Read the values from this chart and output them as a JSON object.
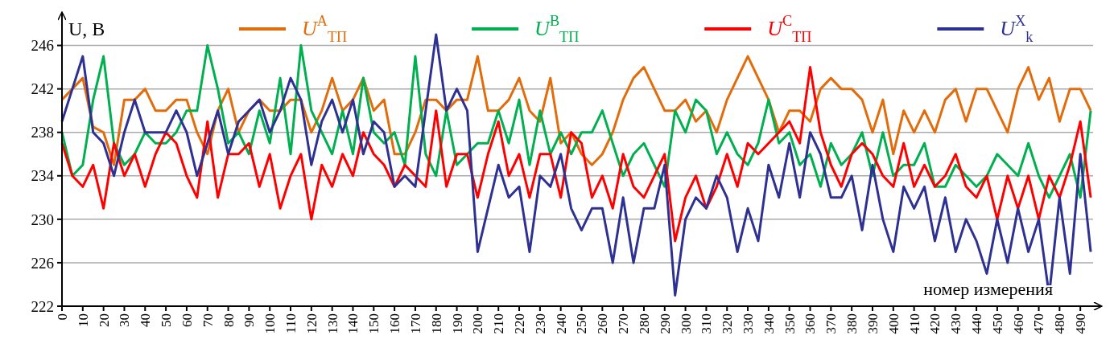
{
  "chart_data": {
    "type": "line",
    "xlabel": "номер измерения",
    "ylabel": "U, В",
    "x": [
      0,
      5,
      10,
      15,
      20,
      25,
      30,
      35,
      40,
      45,
      50,
      55,
      60,
      65,
      70,
      75,
      80,
      85,
      90,
      95,
      100,
      105,
      110,
      115,
      120,
      125,
      130,
      135,
      140,
      145,
      150,
      155,
      160,
      165,
      170,
      175,
      180,
      185,
      190,
      195,
      200,
      205,
      210,
      215,
      220,
      225,
      230,
      235,
      240,
      245,
      250,
      255,
      260,
      265,
      270,
      275,
      280,
      285,
      290,
      295,
      300,
      305,
      310,
      315,
      320,
      325,
      330,
      335,
      340,
      345,
      350,
      355,
      360,
      365,
      370,
      375,
      380,
      385,
      390,
      395,
      400,
      405,
      410,
      415,
      420,
      425,
      430,
      435,
      440,
      445,
      450,
      455,
      460,
      465,
      470,
      475,
      480,
      485,
      490,
      495
    ],
    "series": [
      {
        "name": "U$^{A}$$_{ТП}$",
        "color": "#e36c0a",
        "values": [
          241,
          242,
          243,
          238.5,
          238,
          235,
          241,
          241,
          242,
          240,
          240,
          241,
          241,
          238,
          236,
          240,
          242,
          238,
          240,
          241,
          240,
          240,
          241,
          241,
          238,
          240,
          243,
          240,
          241,
          243,
          240,
          241,
          236,
          236,
          238,
          241,
          241,
          240,
          241,
          241,
          245,
          240,
          240,
          241,
          243,
          240,
          239,
          243,
          237,
          238,
          236,
          235,
          236,
          238,
          241,
          243,
          244,
          242,
          240,
          240,
          241,
          239,
          240,
          238,
          241,
          243,
          245,
          243,
          241,
          238,
          240,
          240,
          239,
          242,
          243,
          242,
          242,
          241,
          238,
          241,
          236,
          240,
          238,
          240,
          238,
          241,
          242,
          239,
          242,
          242,
          240,
          238,
          242,
          244,
          241,
          243,
          239,
          242,
          242,
          240
        ]
      },
      {
        "name": "U$^{B}$$_{ТП}$",
        "color": "#00b050",
        "values": [
          238,
          234,
          235,
          241,
          245,
          237,
          235,
          236,
          238,
          237,
          237,
          238,
          240,
          240,
          246,
          242,
          237,
          238,
          236,
          240,
          237,
          243,
          236,
          246,
          240,
          238,
          236,
          240,
          236,
          243,
          238,
          237,
          238,
          235,
          245,
          236,
          234,
          240,
          235,
          236,
          237,
          237,
          240,
          237,
          241,
          235,
          240,
          236,
          238,
          236,
          238,
          238,
          240,
          237,
          234,
          236,
          237,
          235,
          233,
          240,
          238,
          241,
          240,
          236,
          238,
          236,
          235,
          237,
          241,
          237,
          238,
          235,
          236,
          233,
          237,
          235,
          236,
          238,
          234,
          238,
          234,
          235,
          235,
          237,
          233,
          233,
          235,
          234,
          233,
          234,
          236,
          235,
          234,
          237,
          234,
          232,
          234,
          236,
          232,
          240
        ]
      },
      {
        "name": "U$^{C}$$_{ТП}$",
        "color": "#ff0000",
        "values": [
          237,
          234,
          233,
          235,
          231,
          237,
          234,
          236,
          233,
          236,
          238,
          237,
          234,
          232,
          239,
          232,
          236,
          236,
          237,
          233,
          236,
          231,
          234,
          236,
          230,
          235,
          233,
          236,
          234,
          238,
          236,
          235,
          233,
          235,
          234,
          233,
          240,
          233,
          236,
          236,
          232,
          236,
          239,
          234,
          236,
          232,
          236,
          236,
          232,
          238,
          237,
          232,
          234,
          231,
          236,
          233,
          232,
          234,
          236,
          228,
          232,
          234,
          231,
          233,
          236,
          233,
          237,
          236,
          237,
          238,
          239,
          237,
          244,
          238,
          235,
          233,
          236,
          237,
          236,
          234,
          233,
          237,
          233,
          235,
          233,
          234,
          236,
          233,
          232,
          234,
          230,
          234,
          231,
          234,
          230,
          234,
          232,
          235,
          239,
          232
        ]
      },
      {
        "name": "U$^{X}$$_{k}$",
        "color": "#2e3192",
        "values": [
          239,
          242,
          245,
          238,
          237,
          234,
          238,
          241,
          238,
          238,
          238,
          240,
          238,
          234,
          237,
          240,
          236,
          239,
          240,
          241,
          238,
          240,
          243,
          241,
          235,
          239,
          241,
          238,
          241,
          236,
          239,
          238,
          233,
          234,
          233,
          240,
          247,
          240,
          242,
          240,
          227,
          231,
          235,
          232,
          233,
          227,
          234,
          233,
          236,
          231,
          229,
          231,
          231,
          226,
          232,
          226,
          231,
          231,
          235,
          223,
          230,
          232,
          231,
          234,
          232,
          227,
          231,
          228,
          235,
          232,
          237,
          232,
          238,
          236,
          232,
          232,
          234,
          229,
          235,
          230,
          227,
          233,
          231,
          233,
          228,
          232,
          227,
          230,
          228,
          225,
          230,
          226,
          231,
          227,
          230,
          223,
          232,
          225,
          236,
          227
        ]
      }
    ],
    "xlim": [
      0,
      500
    ],
    "xticks": [
      0,
      10,
      20,
      30,
      40,
      50,
      60,
      70,
      80,
      90,
      100,
      110,
      120,
      130,
      140,
      150,
      160,
      170,
      180,
      190,
      200,
      210,
      220,
      230,
      240,
      250,
      260,
      270,
      280,
      290,
      300,
      310,
      320,
      330,
      340,
      350,
      360,
      370,
      380,
      390,
      400,
      410,
      420,
      430,
      440,
      450,
      460,
      470,
      480,
      490
    ],
    "ylim": [
      222,
      249
    ],
    "yticks": [
      222,
      226,
      230,
      234,
      238,
      242,
      246
    ],
    "grid": "y",
    "legend": "top",
    "marker": "none",
    "line_style": "solid"
  }
}
